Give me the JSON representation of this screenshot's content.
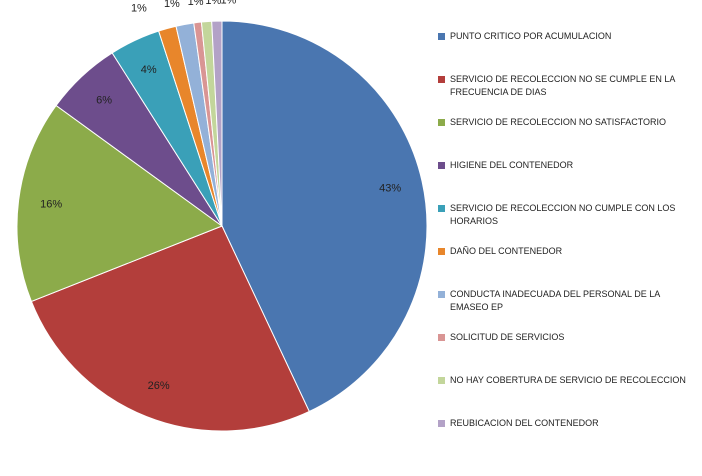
{
  "chart_data": {
    "type": "pie",
    "title": "",
    "slices": [
      {
        "label": "PUNTO CRITICO POR ACUMULACION",
        "value": 43,
        "display": "43%",
        "color": "#4a76b0"
      },
      {
        "label": "SERVICIO DE RECOLECCION NO SE CUMPLE EN LA FRECUENCIA DE DIAS",
        "value": 26,
        "display": "26%",
        "color": "#b33e3b"
      },
      {
        "label": "SERVICIO DE RECOLECCION NO SATISFACTORIO",
        "value": 16,
        "display": "16%",
        "color": "#8cab4a"
      },
      {
        "label": "HIGIENE DEL CONTENEDOR",
        "value": 6,
        "display": "6%",
        "color": "#6d4d8c"
      },
      {
        "label": "SERVICIO DE RECOLECCION NO CUMPLE CON LOS HORARIOS",
        "value": 4,
        "display": "4%",
        "color": "#3aa0b8"
      },
      {
        "label": "DAÑO DEL CONTENEDOR",
        "value": 1.4,
        "display": "1%",
        "color": "#e8862b"
      },
      {
        "label": "CONDUCTA INADECUADA DEL PERSONAL DE LA EMASEO EP",
        "value": 1.4,
        "display": "1%",
        "color": "#93b1d8"
      },
      {
        "label": "SOLICITUD DE SERVICIOS",
        "value": 0.6,
        "display": "1%",
        "color": "#d99594"
      },
      {
        "label": "NO HAY COBERTURA DE SERVICIO DE RECOLECCION",
        "value": 0.8,
        "display": "1%",
        "color": "#c3d69b"
      },
      {
        "label": "REUBICACION DEL CONTENEDOR",
        "value": 0.8,
        "display": "1%",
        "color": "#b3a2c7"
      }
    ],
    "legend_position": "right"
  }
}
